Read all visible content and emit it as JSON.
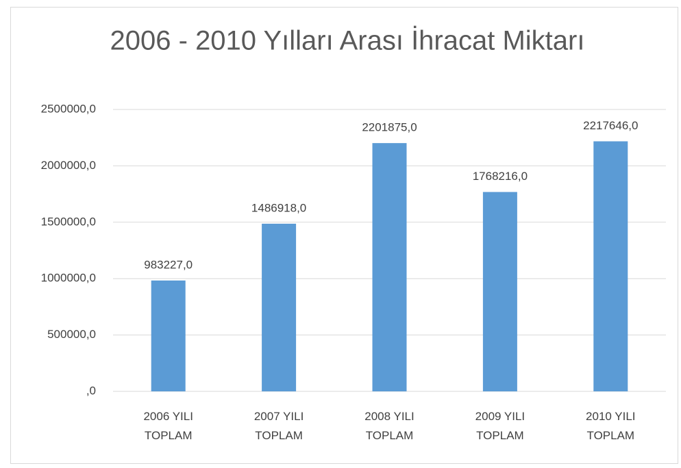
{
  "chart_data": {
    "type": "bar",
    "title": "2006 - 2010 Yılları Arası İhracat Miktarı",
    "categories": [
      "2006 YILI TOPLAM",
      "2007 YILI TOPLAM",
      "2008 YILI TOPLAM",
      "2009 YILI TOPLAM",
      "2010 YILI TOPLAM"
    ],
    "values": [
      983227,
      1486918,
      2201875,
      1768216,
      2217646
    ],
    "value_labels": [
      "983227,0",
      "1486918,0",
      "2201875,0",
      "1768216,0",
      "2217646,0"
    ],
    "color": "#5b9bd5",
    "ylim": [
      0,
      2500000
    ],
    "yticks": [
      {
        "value": 0,
        "label": ",0"
      },
      {
        "value": 500000,
        "label": "500000,0"
      },
      {
        "value": 1000000,
        "label": "1000000,0"
      },
      {
        "value": 1500000,
        "label": "1500000,0"
      },
      {
        "value": 2000000,
        "label": "2000000,0"
      },
      {
        "value": 2500000,
        "label": "2500000,0"
      }
    ],
    "grid": true
  }
}
